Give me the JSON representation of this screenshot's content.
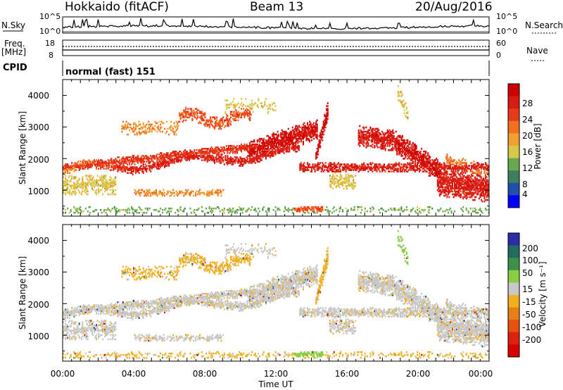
{
  "header": {
    "station": "Hokkaido (fitACF)",
    "beam": "Beam 13",
    "date": "20/Aug/2016"
  },
  "noise_panel": {
    "left_label": "N.Sky",
    "right_label": "N.Search",
    "ticks_left": [
      "10^5",
      "10^0"
    ],
    "ticks_right": [
      "10^5",
      "10^0"
    ]
  },
  "freq_panel": {
    "left_label_1": "Freq.",
    "left_label_2": "[MHz]",
    "ticks_left": [
      "18",
      "8"
    ],
    "right_label": "Nave",
    "ticks_right": [
      "60",
      "0"
    ]
  },
  "cpid_panel": {
    "label": "CPID",
    "text": "normal (fast) 151"
  },
  "colors": {
    "power_scale": [
      "#0000ff",
      "#1f4fa8",
      "#3f7f5f",
      "#6aa84f",
      "#d8c84a",
      "#f0a030",
      "#f07020",
      "#e83a1a",
      "#d81c14",
      "#cc0000"
    ],
    "velocity_scale": [
      "#2c2ca8",
      "#226b5e",
      "#3e8f4a",
      "#88d040",
      "#c8c8c8",
      "#f0b020",
      "#e88018",
      "#e85010",
      "#dd2010",
      "#d80000"
    ]
  },
  "chart_data": [
    {
      "type": "heatmap",
      "name": "power",
      "ylabel": "Slant Range [km]",
      "y_ticks": [
        "1000",
        "2000",
        "3000",
        "4000"
      ],
      "ylim": [
        180,
        4500
      ],
      "x_ticks": [
        "00:00",
        "04:00",
        "08:00",
        "12:00",
        "16:00",
        "20:00",
        "00:00"
      ],
      "xlim_hours": [
        0,
        24
      ],
      "colorbar_label": "Power [dB]",
      "colorbar_ticks": [
        "4",
        "8",
        "12",
        "16",
        "20",
        "24",
        "28"
      ],
      "colorbar_range": [
        0,
        30
      ]
    },
    {
      "type": "heatmap",
      "name": "velocity",
      "ylabel": "Slant Range [km]",
      "y_ticks": [
        "1000",
        "2000",
        "3000",
        "4000"
      ],
      "ylim": [
        180,
        4500
      ],
      "x_ticks": [
        "00:00",
        "04:00",
        "08:00",
        "12:00",
        "16:00",
        "20:00",
        "00:00"
      ],
      "xlim_hours": [
        0,
        24
      ],
      "xlabel": "Time UT",
      "colorbar_label": "Velocity [m s⁻¹]",
      "colorbar_ticks": [
        "200",
        "100",
        "50",
        "15",
        "-15",
        "-50",
        "-100",
        "-200"
      ]
    }
  ]
}
